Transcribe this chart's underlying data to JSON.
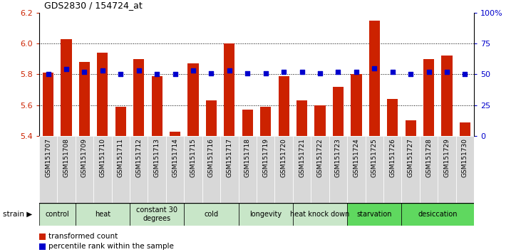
{
  "title": "GDS2830 / 154724_at",
  "samples": [
    "GSM151707",
    "GSM151708",
    "GSM151709",
    "GSM151710",
    "GSM151711",
    "GSM151712",
    "GSM151713",
    "GSM151714",
    "GSM151715",
    "GSM151716",
    "GSM151717",
    "GSM151718",
    "GSM151719",
    "GSM151720",
    "GSM151721",
    "GSM151722",
    "GSM151723",
    "GSM151724",
    "GSM151725",
    "GSM151726",
    "GSM151727",
    "GSM151728",
    "GSM151729",
    "GSM151730"
  ],
  "bar_values": [
    5.81,
    6.03,
    5.88,
    5.94,
    5.59,
    5.9,
    5.79,
    5.43,
    5.87,
    5.63,
    6.0,
    5.57,
    5.59,
    5.79,
    5.63,
    5.6,
    5.72,
    5.8,
    6.15,
    5.64,
    5.5,
    5.9,
    5.92,
    5.49
  ],
  "percentile_values": [
    50,
    54,
    52,
    53,
    50,
    53,
    50,
    50,
    53,
    51,
    53,
    51,
    51,
    52,
    52,
    51,
    52,
    52,
    55,
    52,
    50,
    52,
    52,
    50
  ],
  "groups": [
    {
      "name": "control",
      "start": 0,
      "end": 2,
      "color": "#c8e6c8"
    },
    {
      "name": "heat",
      "start": 2,
      "end": 5,
      "color": "#c8e6c8"
    },
    {
      "name": "constant 30\ndegrees",
      "start": 5,
      "end": 8,
      "color": "#c8e6c8"
    },
    {
      "name": "cold",
      "start": 8,
      "end": 11,
      "color": "#c8e6c8"
    },
    {
      "name": "longevity",
      "start": 11,
      "end": 14,
      "color": "#c8e6c8"
    },
    {
      "name": "heat knock down",
      "start": 14,
      "end": 17,
      "color": "#c8e6c8"
    },
    {
      "name": "starvation",
      "start": 17,
      "end": 20,
      "color": "#5fd85f"
    },
    {
      "name": "desiccation",
      "start": 20,
      "end": 24,
      "color": "#5fd85f"
    }
  ],
  "bar_color": "#cc2200",
  "percentile_color": "#0000cc",
  "ylim_left": [
    5.4,
    6.2
  ],
  "ylim_right": [
    0,
    100
  ],
  "yticks_left": [
    5.4,
    5.6,
    5.8,
    6.0,
    6.2
  ],
  "yticks_right": [
    0,
    25,
    50,
    75,
    100
  ],
  "ytick_labels_right": [
    "0",
    "25",
    "50",
    "75",
    "100%"
  ],
  "grid_values": [
    5.6,
    5.8,
    6.0
  ],
  "bar_width": 0.6,
  "background_color": "#ffffff",
  "legend_items": [
    {
      "label": "transformed count",
      "color": "#cc2200"
    },
    {
      "label": "percentile rank within the sample",
      "color": "#0000cc"
    }
  ]
}
